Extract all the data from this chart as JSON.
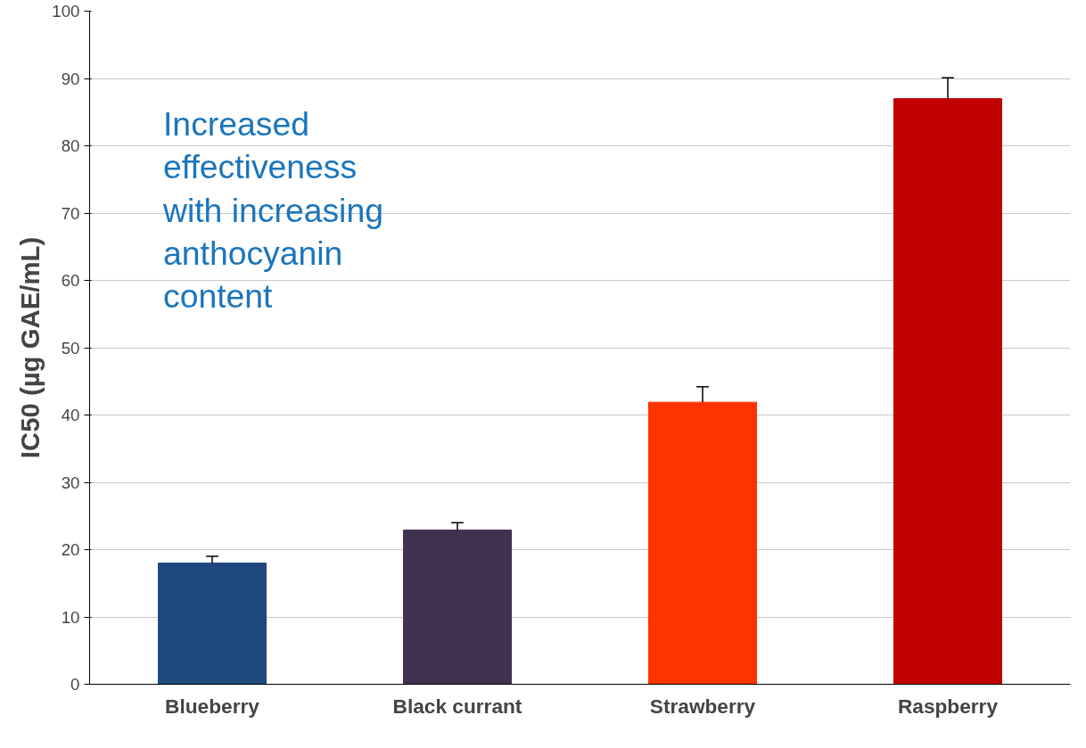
{
  "chart_data": {
    "type": "bar",
    "ylabel": "IC50 (µg GAE/mL)",
    "categories": [
      "Blueberry",
      "Black currant",
      "Strawberry",
      "Raspberry"
    ],
    "values": [
      18.0,
      22.9,
      41.9,
      87.0
    ],
    "colors": [
      "#1f497d",
      "#403151",
      "#ff3300",
      "#c00000"
    ],
    "errors": [
      [
        18.0,
        19.0
      ],
      [
        22.9,
        24.0
      ],
      [
        41.9,
        44.2
      ],
      [
        87.0,
        90.1
      ]
    ],
    "ylim": [
      0,
      100
    ],
    "yticks": [
      0,
      10,
      20,
      30,
      40,
      50,
      60,
      70,
      80,
      90,
      100
    ],
    "grid": "y",
    "annotations": [
      "Increased\neffectiveness\nwith increasing\nanthocyanin\ncontent"
    ]
  }
}
